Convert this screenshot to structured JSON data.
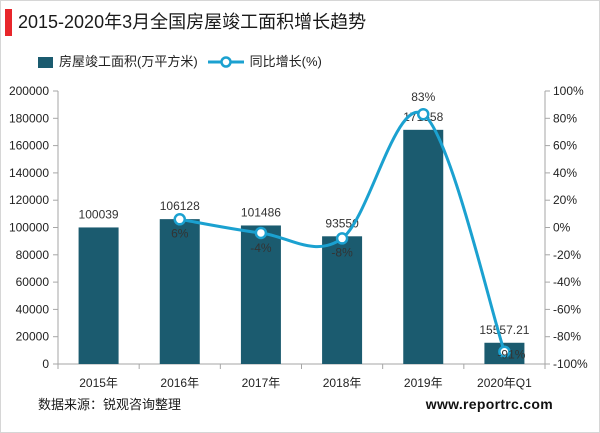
{
  "colors": {
    "accent": "#e8262b",
    "bar": "#1b5b6f",
    "line": "#1ba1d0",
    "marker_fill": "#ffffff",
    "axis": "#a6a6a6",
    "label_text": "#333333"
  },
  "chart_data": {
    "type": "bar",
    "title": "2015-2020年3月全国房屋竣工面积增长趋势",
    "xlabel": "",
    "ylabel": "",
    "categories": [
      "2015年",
      "2016年",
      "2017年",
      "2018年",
      "2019年",
      "2020年Q1"
    ],
    "series": [
      {
        "name": "房屋竣工面积(万平方米)",
        "type": "bar",
        "axis": "left",
        "values": [
          100039,
          106128,
          101486,
          93550,
          171558,
          15557.21
        ],
        "data_labels": [
          "100039",
          "106128",
          "101486",
          "93550",
          "171558",
          "15557.21"
        ]
      },
      {
        "name": "同比增长(%)",
        "type": "line",
        "smooth": true,
        "axis": "right",
        "values": [
          null,
          6,
          -4,
          -8,
          83,
          -91
        ],
        "data_labels": [
          null,
          "6%",
          "-4%",
          "-8%",
          "83%",
          "-91%"
        ]
      }
    ],
    "y_left": {
      "range": [
        0,
        200000
      ],
      "ticks": [
        0,
        20000,
        40000,
        60000,
        80000,
        100000,
        120000,
        140000,
        160000,
        180000,
        200000
      ],
      "tick_labels": [
        "0",
        "20000",
        "40000",
        "60000",
        "80000",
        "100000",
        "120000",
        "140000",
        "160000",
        "180000",
        "200000"
      ]
    },
    "y_right": {
      "range": [
        -100,
        100
      ],
      "ticks": [
        -100,
        -80,
        -60,
        -40,
        -20,
        0,
        20,
        40,
        60,
        80,
        100
      ],
      "tick_labels": [
        "-100%",
        "-80%",
        "-60%",
        "-40%",
        "-20%",
        "0%",
        "20%",
        "40%",
        "60%",
        "80%",
        "100%"
      ]
    },
    "grid": false,
    "legend": "top-left"
  },
  "footer": {
    "source": "数据来源：锐观咨询整理",
    "website": "www.reportrc.com"
  }
}
